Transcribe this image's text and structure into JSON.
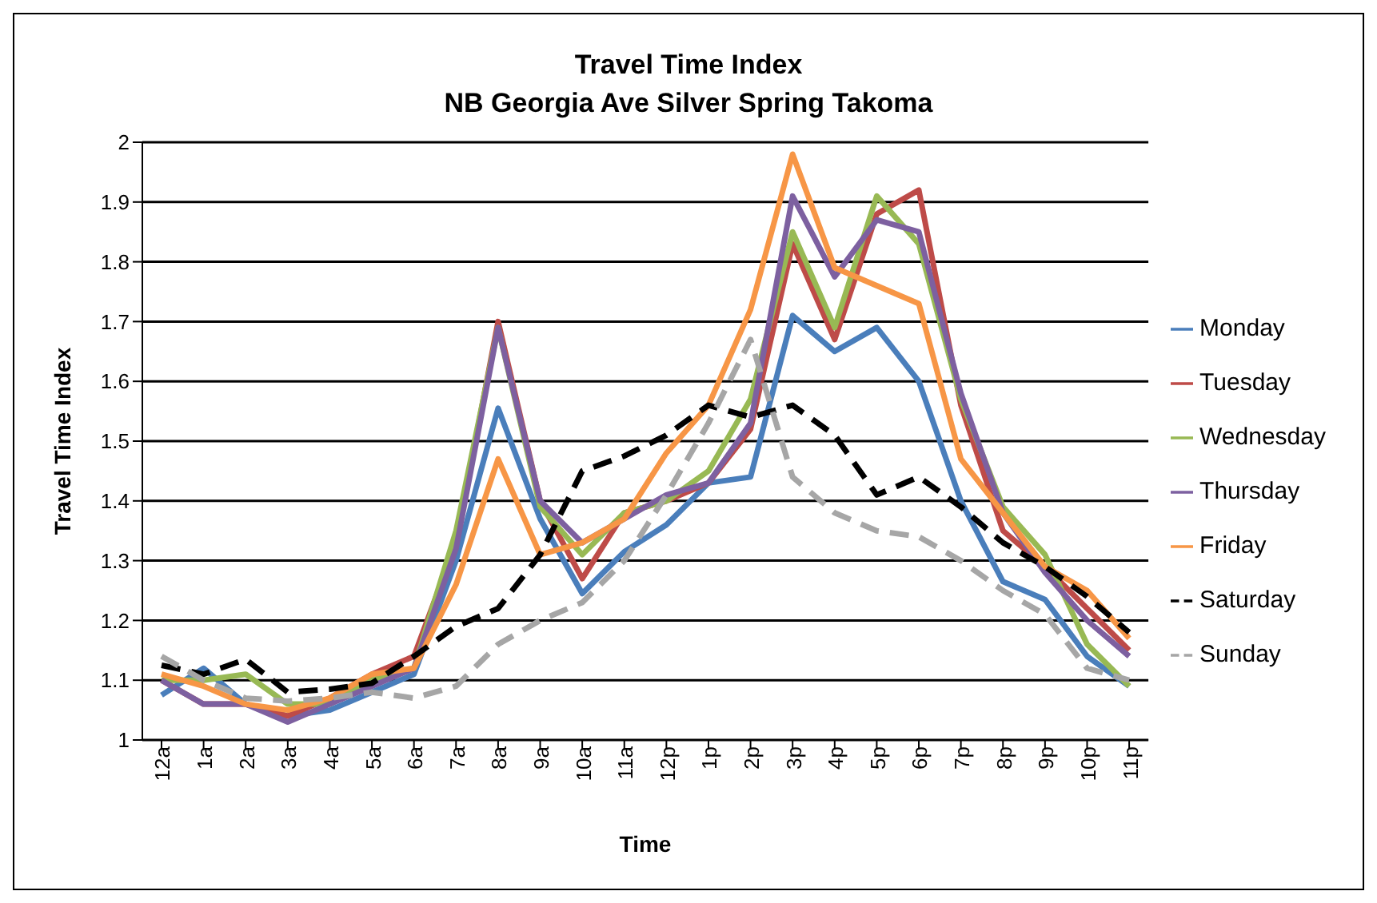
{
  "chart_data": {
    "type": "line",
    "title": "Travel Time Index",
    "subtitle": "NB Georgia Ave Silver Spring Takoma",
    "xlabel": "Time",
    "ylabel": "Travel Time Index",
    "categories": [
      "12a",
      "1a",
      "2a",
      "3a",
      "4a",
      "5a",
      "6a",
      "7a",
      "8a",
      "9a",
      "10a",
      "11a",
      "12p",
      "1p",
      "2p",
      "3p",
      "4p",
      "5p",
      "6p",
      "7p",
      "8p",
      "9p",
      "10p",
      "11p"
    ],
    "series": [
      {
        "name": "Monday",
        "color": "#4a7ebb",
        "values": [
          1.075,
          1.12,
          1.06,
          1.04,
          1.05,
          1.08,
          1.11,
          1.3,
          1.555,
          1.37,
          1.245,
          1.315,
          1.36,
          1.43,
          1.44,
          1.71,
          1.65,
          1.69,
          1.6,
          1.4,
          1.265,
          1.235,
          1.14,
          1.09
        ]
      },
      {
        "name": "Tuesday",
        "color": "#be4b48",
        "values": [
          1.1,
          1.06,
          1.06,
          1.04,
          1.07,
          1.11,
          1.14,
          1.33,
          1.7,
          1.4,
          1.27,
          1.38,
          1.4,
          1.43,
          1.52,
          1.83,
          1.67,
          1.88,
          1.92,
          1.56,
          1.35,
          1.29,
          1.22,
          1.15
        ]
      },
      {
        "name": "Wednesday",
        "color": "#98b954",
        "values": [
          1.1,
          1.1,
          1.11,
          1.06,
          1.06,
          1.1,
          1.12,
          1.35,
          1.69,
          1.39,
          1.31,
          1.38,
          1.4,
          1.45,
          1.57,
          1.85,
          1.69,
          1.91,
          1.83,
          1.57,
          1.39,
          1.31,
          1.16,
          1.09
        ]
      },
      {
        "name": "Thursday",
        "color": "#7d60a0",
        "values": [
          1.1,
          1.06,
          1.06,
          1.03,
          1.06,
          1.09,
          1.12,
          1.32,
          1.69,
          1.4,
          1.33,
          1.37,
          1.41,
          1.43,
          1.53,
          1.91,
          1.775,
          1.87,
          1.85,
          1.58,
          1.38,
          1.28,
          1.2,
          1.14
        ]
      },
      {
        "name": "Friday",
        "color": "#f79646",
        "values": [
          1.11,
          1.09,
          1.06,
          1.05,
          1.07,
          1.11,
          1.12,
          1.26,
          1.47,
          1.31,
          1.33,
          1.37,
          1.48,
          1.56,
          1.72,
          1.98,
          1.79,
          1.76,
          1.73,
          1.47,
          1.38,
          1.29,
          1.25,
          1.17
        ]
      },
      {
        "name": "Saturday",
        "color": "#000000",
        "line_style": "dashed",
        "values": [
          1.125,
          1.11,
          1.135,
          1.08,
          1.085,
          1.095,
          1.14,
          1.19,
          1.22,
          1.31,
          1.45,
          1.475,
          1.51,
          1.56,
          1.54,
          1.56,
          1.51,
          1.41,
          1.44,
          1.39,
          1.33,
          1.29,
          1.24,
          1.18
        ]
      },
      {
        "name": "Sunday",
        "color": "#a6a6a6",
        "line_style": "dashed",
        "values": [
          1.14,
          1.1,
          1.07,
          1.065,
          1.07,
          1.08,
          1.07,
          1.09,
          1.16,
          1.2,
          1.23,
          1.3,
          1.41,
          1.53,
          1.67,
          1.44,
          1.38,
          1.35,
          1.34,
          1.3,
          1.25,
          1.21,
          1.12,
          1.1
        ]
      }
    ],
    "ylim": [
      1,
      2
    ],
    "yticks": [
      1,
      1.1,
      1.2,
      1.3,
      1.4,
      1.5,
      1.6,
      1.7,
      1.8,
      1.9,
      2
    ],
    "grid": "y",
    "legend": "right",
    "marker": "none",
    "line_style": "solid"
  }
}
